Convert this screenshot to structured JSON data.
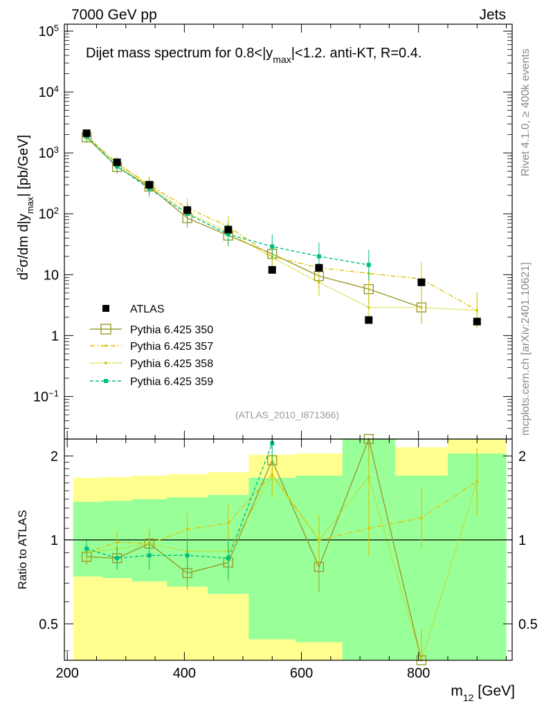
{
  "header": {
    "left": "7000 GeV pp",
    "right": "Jets"
  },
  "side_labels": {
    "rivet": "Rivet 4.1.0, ≥ 400k events",
    "mcplots": "mcplots.cern.ch [arXiv:2401.10621]"
  },
  "colors": {
    "atlas": "#000000",
    "p350": "#9a9a2a",
    "p357": "#e0c000",
    "p358": "#cccc00",
    "p359": "#00c080",
    "band_yellow": "#ffff90",
    "band_green": "#99ff99"
  },
  "chart_data": [
    {
      "type": "scatter",
      "panel": "main",
      "title": "Dijet mass spectrum for 0.8<|y_max|<1.2.  anti-KT, R=0.4.",
      "title_parts": {
        "pre": "Dijet mass spectrum for 0.8<|y",
        "sub": "max",
        "post": "|<1.2.  anti-KT, R=0.4."
      },
      "ylabel_parts": {
        "a": "d",
        "sup": "2",
        "b": "σ/dm d|y",
        "sub": "max",
        "c": "| [pb/GeV]"
      },
      "yscale": "log",
      "xlim": [
        195,
        960
      ],
      "ylim": [
        0.02,
        130000
      ],
      "yticks": [
        {
          "v": 100000,
          "base": "10",
          "exp": "5"
        },
        {
          "v": 10000,
          "base": "10",
          "exp": "4"
        },
        {
          "v": 1000,
          "base": "10",
          "exp": "3"
        },
        {
          "v": 100,
          "base": "10",
          "exp": "2"
        },
        {
          "v": 10,
          "base": "10",
          "exp": ""
        },
        {
          "v": 1,
          "base": "1",
          "exp": ""
        },
        {
          "v": 0.1,
          "base": "10",
          "exp": "−1"
        }
      ],
      "analysis_label": "(ATLAS_2010_I871366)",
      "legend": [
        "ATLAS",
        "Pythia 6.425 350",
        "Pythia 6.425 357",
        "Pythia 6.425 358",
        "Pythia 6.425 359"
      ],
      "series": [
        {
          "name": "ATLAS",
          "x": [
            233,
            285,
            340,
            405,
            475,
            550,
            630,
            715,
            805,
            900
          ],
          "y": [
            2100,
            700,
            300,
            115,
            55,
            12,
            13,
            1.8,
            7.5,
            1.7
          ]
        },
        {
          "name": "Pythia 6.425 350",
          "x": [
            233,
            285,
            340,
            405,
            475,
            550,
            630,
            715,
            805
          ],
          "y": [
            1800,
            590,
            280,
            85,
            44,
            22,
            9.5,
            5.8,
            2.9
          ]
        },
        {
          "name": "Pythia 6.425 357",
          "x": [
            233,
            285,
            340,
            405,
            475,
            550,
            630,
            715,
            805,
            900
          ],
          "y": [
            1900,
            680,
            300,
            125,
            62,
            20,
            13,
            10.5,
            8.5,
            2.6
          ]
        },
        {
          "name": "Pythia 6.425 358",
          "x": [
            233,
            285,
            340,
            405,
            475,
            550,
            630,
            715,
            805,
            900
          ],
          "y": [
            1900,
            650,
            290,
            105,
            50,
            19,
            7.5,
            2.9,
            2.9,
            2.6
          ]
        },
        {
          "name": "Pythia 6.425 359",
          "x": [
            233,
            285,
            340,
            405,
            475,
            550,
            630,
            715
          ],
          "y": [
            1850,
            600,
            260,
            100,
            46,
            29,
            20,
            14.5
          ]
        }
      ]
    },
    {
      "type": "line",
      "panel": "ratio",
      "ylabel": "Ratio to ATLAS",
      "xlabel_parts": {
        "a": "m",
        "sub": "12",
        "b": " [GeV]"
      },
      "xlim": [
        195,
        960
      ],
      "ylim": [
        0.37,
        2.3
      ],
      "xticks": [
        200,
        400,
        600,
        800
      ],
      "yticks": [
        0.5,
        1,
        2
      ],
      "reference_line": 1,
      "bands": [
        {
          "x0": 210,
          "x1": 260,
          "yellow": [
            0.37,
            1.67
          ],
          "green": [
            0.74,
            1.37
          ]
        },
        {
          "x0": 260,
          "x1": 310,
          "yellow": [
            0.37,
            1.68
          ],
          "green": [
            0.73,
            1.38
          ]
        },
        {
          "x0": 310,
          "x1": 370,
          "yellow": [
            0.37,
            1.7
          ],
          "green": [
            0.71,
            1.4
          ]
        },
        {
          "x0": 370,
          "x1": 440,
          "yellow": [
            0.37,
            1.72
          ],
          "green": [
            0.68,
            1.42
          ]
        },
        {
          "x0": 440,
          "x1": 510,
          "yellow": [
            0.37,
            1.75
          ],
          "green": [
            0.64,
            1.45
          ]
        },
        {
          "x0": 510,
          "x1": 590,
          "yellow": [
            0.37,
            2.02
          ],
          "green": [
            0.44,
            1.67
          ]
        },
        {
          "x0": 590,
          "x1": 670,
          "yellow": [
            0.37,
            2.04
          ],
          "green": [
            0.43,
            1.7
          ]
        },
        {
          "x0": 670,
          "x1": 760,
          "yellow": [
            0.37,
            2.3
          ],
          "green": [
            0.37,
            2.3
          ]
        },
        {
          "x0": 760,
          "x1": 850,
          "yellow": [
            0.37,
            2.15
          ],
          "green": [
            0.37,
            1.7
          ]
        },
        {
          "x0": 850,
          "x1": 950,
          "yellow": [
            0.37,
            2.3
          ],
          "green": [
            0.37,
            2.04
          ]
        }
      ],
      "series": [
        {
          "name": "Pythia 6.425 350",
          "x": [
            233,
            285,
            340,
            405,
            475,
            550,
            630,
            715,
            805
          ],
          "y": [
            0.87,
            0.86,
            0.97,
            0.76,
            0.83,
            1.93,
            0.8,
            3.2,
            0.37
          ]
        },
        {
          "name": "Pythia 6.425 357",
          "x": [
            233,
            285,
            340,
            405,
            475,
            550,
            630,
            715,
            805,
            900
          ],
          "y": [
            0.9,
            0.98,
            0.97,
            1.09,
            1.15,
            1.72,
            1.0,
            1.1,
            1.2,
            1.62
          ]
        },
        {
          "name": "Pythia 6.425 358",
          "x": [
            233,
            285,
            340,
            405,
            475,
            550,
            630,
            715,
            805,
            900
          ],
          "y": [
            0.9,
            0.93,
            0.97,
            0.91,
            0.91,
            1.7,
            1.0,
            1.68,
            0.37,
            1.62
          ]
        },
        {
          "name": "Pythia 6.425 359",
          "x": [
            233,
            285,
            340,
            405,
            475,
            550
          ],
          "y": [
            0.93,
            0.86,
            0.88,
            0.88,
            0.86,
            2.22
          ]
        }
      ]
    }
  ]
}
